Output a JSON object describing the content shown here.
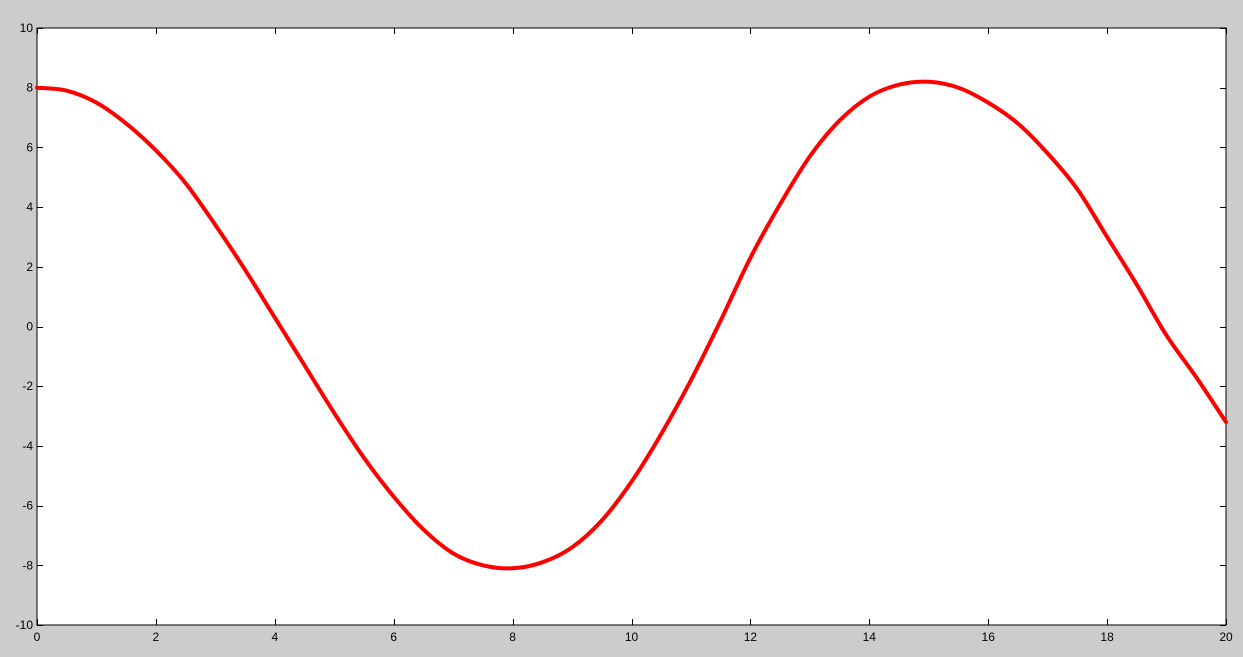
{
  "chart_data": {
    "type": "line",
    "title": "",
    "xlabel": "",
    "ylabel": "",
    "xlim": [
      0,
      20
    ],
    "ylim": [
      -10,
      10
    ],
    "grid": false,
    "x_ticks": [
      0,
      2,
      4,
      6,
      8,
      10,
      12,
      14,
      16,
      18,
      20
    ],
    "y_ticks": [
      -10,
      -8,
      -6,
      -4,
      -2,
      0,
      2,
      4,
      6,
      8,
      10
    ],
    "x_tick_labels": [
      "0",
      "2",
      "4",
      "6",
      "8",
      "10",
      "12",
      "14",
      "16",
      "18",
      "20"
    ],
    "y_tick_labels": [
      "-10",
      "-8",
      "-6",
      "-4",
      "-2",
      "0",
      "2",
      "4",
      "6",
      "8",
      "10"
    ],
    "series": [
      {
        "color": "#ff0000",
        "x": [
          0,
          0.5,
          1,
          1.5,
          2,
          2.5,
          3,
          3.5,
          4,
          4.5,
          5,
          5.5,
          6,
          6.5,
          7,
          7.5,
          8,
          8.5,
          9,
          9.5,
          10,
          10.5,
          11,
          11.5,
          12,
          12.5,
          13,
          13.5,
          14,
          14.5,
          15,
          15.5,
          16,
          16.5,
          17,
          17.5,
          18,
          18.5,
          19,
          19.5,
          20
        ],
        "y": [
          8.0,
          7.9,
          7.5,
          6.8,
          5.9,
          4.8,
          3.4,
          1.9,
          0.3,
          -1.3,
          -2.9,
          -4.4,
          -5.7,
          -6.8,
          -7.6,
          -8.0,
          -8.1,
          -7.9,
          -7.4,
          -6.5,
          -5.2,
          -3.6,
          -1.8,
          0.2,
          2.3,
          4.1,
          5.7,
          6.9,
          7.7,
          8.1,
          8.2,
          8.0,
          7.5,
          6.8,
          5.8,
          4.6,
          3.0,
          1.4,
          -0.3,
          -1.7,
          -3.2
        ]
      }
    ]
  }
}
